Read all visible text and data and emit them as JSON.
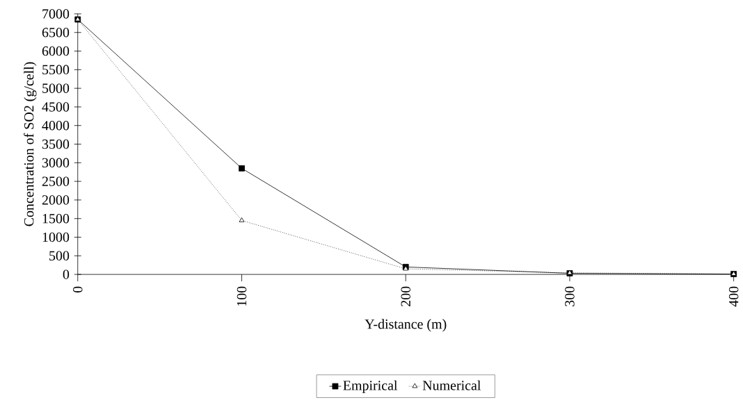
{
  "chart_data": {
    "type": "line",
    "xlabel": "Y-distance (m)",
    "ylabel": "Concentration of SO2 (g/cell)",
    "categories": [
      "0",
      "100",
      "200",
      "300",
      "400"
    ],
    "series": [
      {
        "name": "Empirical",
        "color": "#000000",
        "marker": "square",
        "line_style": "solid",
        "values": [
          6850,
          2850,
          200,
          30,
          10
        ]
      },
      {
        "name": "Numerical",
        "color": "#000000",
        "marker": "triangle",
        "line_style": "dotted",
        "values": [
          6850,
          1450,
          150,
          40,
          10
        ]
      }
    ],
    "ylim": [
      0,
      7000
    ],
    "yticks": [
      0,
      500,
      1000,
      1500,
      2000,
      2500,
      3000,
      3500,
      4000,
      4500,
      5000,
      5500,
      6000,
      6500,
      7000
    ],
    "grid": false,
    "legend": "bottom"
  }
}
